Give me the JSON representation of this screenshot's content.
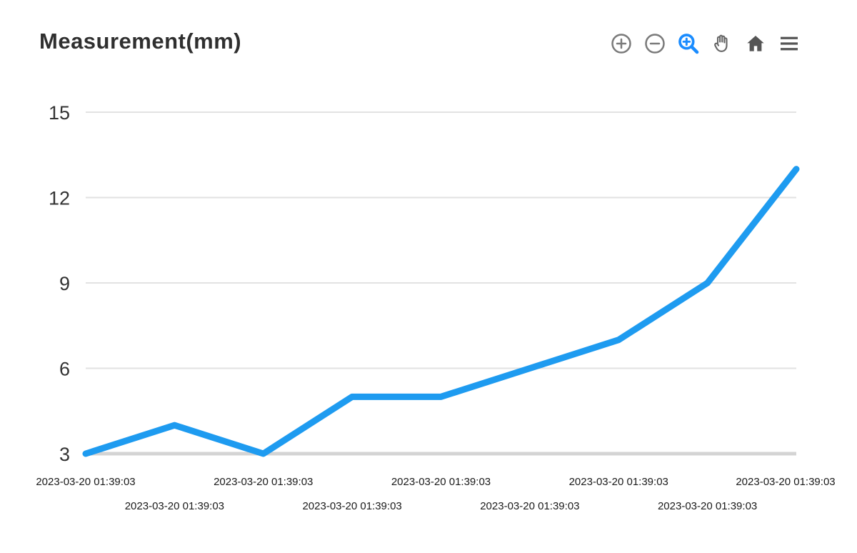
{
  "header": {
    "title": "Measurement(mm)"
  },
  "toolbar": {
    "items": [
      {
        "name": "zoom-in",
        "label": "Zoom in"
      },
      {
        "name": "zoom-out",
        "label": "Zoom out"
      },
      {
        "name": "zoom-select",
        "label": "Selection zoom"
      },
      {
        "name": "pan",
        "label": "Panning"
      },
      {
        "name": "home",
        "label": "Reset zoom"
      },
      {
        "name": "menu",
        "label": "Menu"
      }
    ]
  },
  "chart_data": {
    "type": "line",
    "title": "Measurement(mm)",
    "x_labels": [
      "2023-03-20 01:39:03",
      "2023-03-20 01:39:03",
      "2023-03-20 01:39:03",
      "2023-03-20 01:39:03",
      "2023-03-20 01:39:03",
      "2023-03-20 01:39:03",
      "2023-03-20 01:39:03",
      "2023-03-20 01:39:03",
      "2023-03-20 01:39:03"
    ],
    "values": [
      3,
      4,
      3,
      5,
      5,
      6,
      7,
      9,
      13
    ],
    "yticks": [
      3,
      6,
      9,
      12,
      15
    ],
    "ylim": [
      3,
      15
    ],
    "xlabel": "",
    "ylabel": "",
    "grid": true,
    "legend": "none",
    "line_color": "#1e9bf0",
    "grid_color": "#e2e2e2",
    "axis_color": "#d4d4d4",
    "toolbar_icon_color": "#7a7a7a",
    "toolbar_active_color": "#1a8cff",
    "toolbar_dark_color": "#555555"
  }
}
